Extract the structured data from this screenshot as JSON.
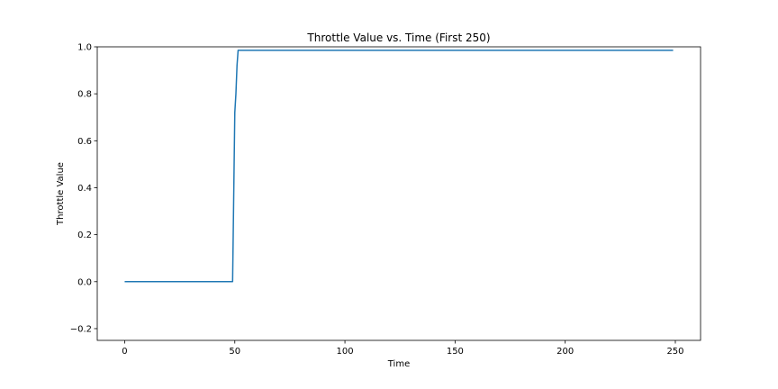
{
  "chart_data": {
    "type": "line",
    "title": "Throttle Value vs. Time (First 250)",
    "xlabel": "Time",
    "ylabel": "Throttle Value",
    "xlim": [
      -12.45,
      261.45
    ],
    "ylim": [
      -0.25,
      1.0
    ],
    "xticks": [
      0,
      50,
      100,
      150,
      200,
      250
    ],
    "xtick_labels": [
      "0",
      "50",
      "100",
      "150",
      "200",
      "250"
    ],
    "yticks": [
      -0.2,
      0.0,
      0.2,
      0.4,
      0.6,
      0.8,
      1.0
    ],
    "ytick_labels": [
      "−0.2",
      "0.0",
      "0.2",
      "0.4",
      "0.6",
      "0.8",
      "1.0"
    ],
    "grid": false,
    "series": [
      {
        "color": "#1f77b4",
        "x": [
          0,
          49,
          50,
          50.5,
          51,
          51.5,
          52,
          249
        ],
        "y": [
          0.0,
          0.0,
          0.72,
          0.8,
          0.92,
          0.985,
          0.985,
          0.985
        ]
      }
    ]
  }
}
